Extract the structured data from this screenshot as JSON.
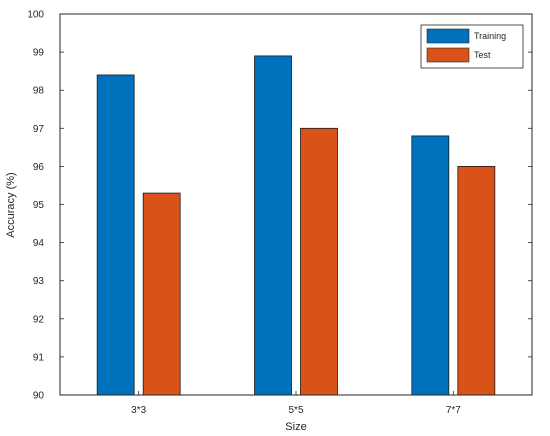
{
  "chart_data": {
    "type": "bar",
    "title": "",
    "xlabel": "Size",
    "ylabel": "Accuracy (%)",
    "ylim": [
      90,
      100
    ],
    "yticks": [
      90,
      91,
      92,
      93,
      94,
      95,
      96,
      97,
      98,
      99,
      100
    ],
    "categories": [
      "3*3",
      "5*5",
      "7*7"
    ],
    "series": [
      {
        "name": "Training",
        "color": "#0072BD",
        "values": [
          98.4,
          98.9,
          96.8
        ]
      },
      {
        "name": "Test",
        "color": "#D95319",
        "values": [
          95.3,
          97.0,
          96.0
        ]
      }
    ],
    "grid": false,
    "legend_position": "top-right"
  }
}
